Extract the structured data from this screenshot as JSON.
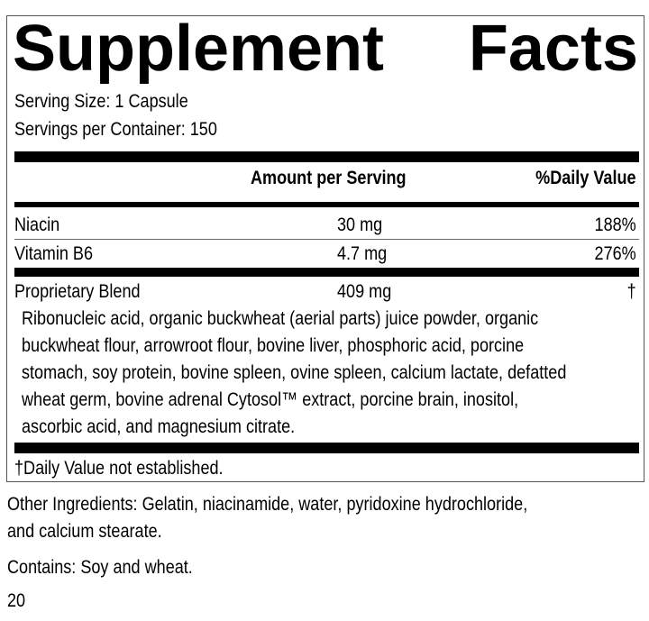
{
  "title": {
    "word1": "Supplement",
    "word2": "Facts"
  },
  "serving_size": "Serving Size: 1 Capsule",
  "servings_per_container": "Servings per Container: 150",
  "header": {
    "amount": "Amount per Serving",
    "daily_value": "%Daily Value"
  },
  "rows": [
    {
      "name": "Niacin",
      "amount": "30 mg",
      "dv": "188%"
    },
    {
      "name": "Vitamin B6",
      "amount": "4.7 mg",
      "dv": "276%"
    },
    {
      "name": "Proprietary Blend",
      "amount": "409 mg",
      "dv": "†"
    }
  ],
  "blend_lines": [
    "Ribonucleic acid, organic buckwheat (aerial parts) juice powder, organic",
    "buckwheat flour, arrowroot flour, bovine liver, phosphoric acid, porcine",
    "stomach, soy protein, bovine spleen, ovine spleen, calcium lactate, defatted",
    "wheat germ, bovine adrenal Cytosol™ extract, porcine brain, inositol,",
    "ascorbic acid, and magnesium citrate."
  ],
  "footnote": "†Daily Value not established.",
  "other_ingredients": [
    "Other Ingredients: Gelatin, niacinamide, water, pyridoxine hydrochloride,",
    "and calcium stearate."
  ],
  "contains": "Contains: Soy and wheat.",
  "page_number": "20"
}
